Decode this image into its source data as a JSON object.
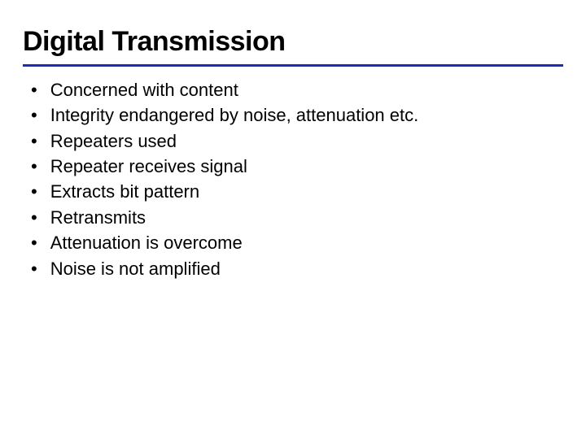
{
  "title": "Digital Transmission",
  "underline_color": "#1a2db8",
  "background_color": "#ffffff",
  "title_color": "#000000",
  "text_color": "#000000",
  "title_fontsize": 34,
  "body_fontsize": 22,
  "bullets": [
    "Concerned with content",
    "Integrity endangered by noise, attenuation etc.",
    "Repeaters used",
    "Repeater receives signal",
    "Extracts bit pattern",
    "Retransmits",
    "Attenuation is overcome",
    "Noise is not amplified"
  ]
}
